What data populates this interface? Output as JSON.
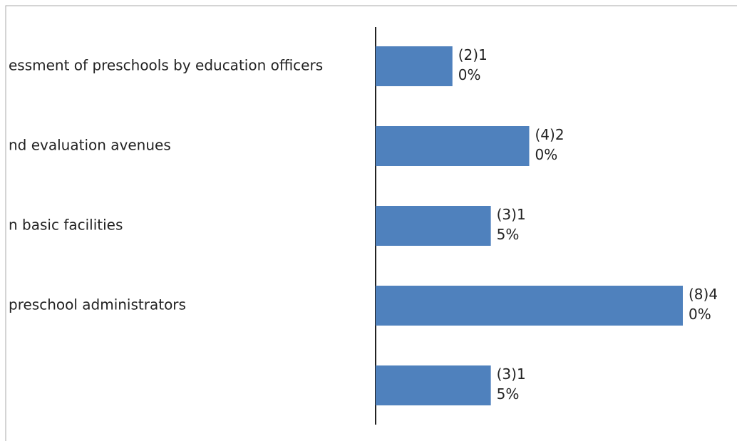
{
  "chart_data": {
    "type": "bar",
    "orientation": "horizontal",
    "categories": [
      "essment of preschools by education officers",
      "nd evaluation avenues",
      "n basic facilities",
      "preschool administrators",
      null
    ],
    "values": [
      10,
      20,
      15,
      40,
      15
    ],
    "value_labels": [
      "(2)10%",
      "(4)20%",
      "(3)15%",
      "(8)40%",
      "(3)15%"
    ],
    "color": "#4f81bd"
  }
}
